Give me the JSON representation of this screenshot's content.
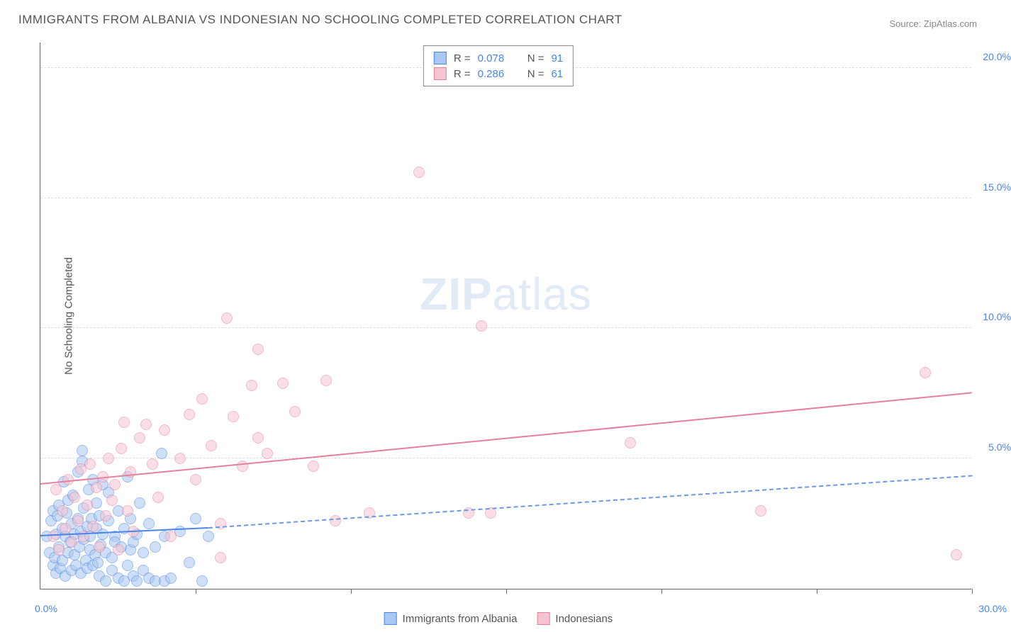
{
  "title": "IMMIGRANTS FROM ALBANIA VS INDONESIAN NO SCHOOLING COMPLETED CORRELATION CHART",
  "source": "Source: ZipAtlas.com",
  "y_axis_label": "No Schooling Completed",
  "watermark_zip": "ZIP",
  "watermark_atlas": "atlas",
  "chart": {
    "type": "scatter",
    "xlim": [
      0,
      30
    ],
    "ylim": [
      0,
      21
    ],
    "x_ticks": [
      0,
      5,
      10,
      15,
      20,
      25,
      30
    ],
    "y_ticks": [
      5,
      10,
      15,
      20
    ],
    "y_tick_labels": [
      "5.0%",
      "10.0%",
      "15.0%",
      "20.0%"
    ],
    "x_min_label": "0.0%",
    "x_max_label": "30.0%",
    "background_color": "#ffffff",
    "grid_color": "#dddddd",
    "axis_color": "#666666",
    "tick_label_color": "#4a86e8",
    "axis_label_color": "#555555",
    "title_color": "#555555",
    "title_fontsize": 17,
    "marker_radius": 8,
    "marker_opacity": 0.55,
    "series": [
      {
        "name": "Immigrants from Albania",
        "fill_color": "#a8c8f0",
        "stroke_color": "#4a86e8",
        "line_color": "#4a86e8",
        "line_dash_color": "#6a9ae8",
        "R": "0.078",
        "N": "91",
        "regression": {
          "x0": 0,
          "y0": 2.0,
          "x1": 5.4,
          "y1": 2.3,
          "dash_x1": 30,
          "dash_y1": 4.3
        },
        "points": [
          [
            0.2,
            2.0
          ],
          [
            0.3,
            1.4
          ],
          [
            0.35,
            2.6
          ],
          [
            0.4,
            0.9
          ],
          [
            0.4,
            3.0
          ],
          [
            0.45,
            1.2
          ],
          [
            0.5,
            2.1
          ],
          [
            0.5,
            0.6
          ],
          [
            0.55,
            2.8
          ],
          [
            0.6,
            1.6
          ],
          [
            0.6,
            3.2
          ],
          [
            0.65,
            0.8
          ],
          [
            0.7,
            2.3
          ],
          [
            0.7,
            1.1
          ],
          [
            0.75,
            4.1
          ],
          [
            0.8,
            2.0
          ],
          [
            0.8,
            0.5
          ],
          [
            0.85,
            2.9
          ],
          [
            0.9,
            1.4
          ],
          [
            0.9,
            3.4
          ],
          [
            0.95,
            1.8
          ],
          [
            1.0,
            2.5
          ],
          [
            1.0,
            0.7
          ],
          [
            1.05,
            3.6
          ],
          [
            1.1,
            1.3
          ],
          [
            1.1,
            2.1
          ],
          [
            1.15,
            0.9
          ],
          [
            1.2,
            2.7
          ],
          [
            1.2,
            4.5
          ],
          [
            1.25,
            1.6
          ],
          [
            1.3,
            2.2
          ],
          [
            1.3,
            0.6
          ],
          [
            1.35,
            4.9
          ],
          [
            1.4,
            1.9
          ],
          [
            1.4,
            3.1
          ],
          [
            1.45,
            1.1
          ],
          [
            1.5,
            2.4
          ],
          [
            1.5,
            0.8
          ],
          [
            1.55,
            3.8
          ],
          [
            1.6,
            1.5
          ],
          [
            1.6,
            2.0
          ],
          [
            1.65,
            2.7
          ],
          [
            1.7,
            0.9
          ],
          [
            1.7,
            4.2
          ],
          [
            1.75,
            1.3
          ],
          [
            1.8,
            2.3
          ],
          [
            1.8,
            3.3
          ],
          [
            1.85,
            1.0
          ],
          [
            1.9,
            2.8
          ],
          [
            1.9,
            0.5
          ],
          [
            1.95,
            1.7
          ],
          [
            2.0,
            2.1
          ],
          [
            2.0,
            4.0
          ],
          [
            2.1,
            1.4
          ],
          [
            2.1,
            0.3
          ],
          [
            2.2,
            2.6
          ],
          [
            2.2,
            3.7
          ],
          [
            2.3,
            1.2
          ],
          [
            2.3,
            0.7
          ],
          [
            2.4,
            2.0
          ],
          [
            2.4,
            1.8
          ],
          [
            2.5,
            3.0
          ],
          [
            2.5,
            0.4
          ],
          [
            2.6,
            1.6
          ],
          [
            2.7,
            0.3
          ],
          [
            2.7,
            2.3
          ],
          [
            2.8,
            0.9
          ],
          [
            2.8,
            4.3
          ],
          [
            2.9,
            1.5
          ],
          [
            2.9,
            2.7
          ],
          [
            3.0,
            0.5
          ],
          [
            3.0,
            1.8
          ],
          [
            3.1,
            0.3
          ],
          [
            3.1,
            2.1
          ],
          [
            3.2,
            3.3
          ],
          [
            3.3,
            0.7
          ],
          [
            3.3,
            1.4
          ],
          [
            3.5,
            0.4
          ],
          [
            3.5,
            2.5
          ],
          [
            3.7,
            0.3
          ],
          [
            3.7,
            1.6
          ],
          [
            4.0,
            0.3
          ],
          [
            4.0,
            2.0
          ],
          [
            4.2,
            0.4
          ],
          [
            4.5,
            2.2
          ],
          [
            4.8,
            1.0
          ],
          [
            5.0,
            2.7
          ],
          [
            5.2,
            0.3
          ],
          [
            5.4,
            2.0
          ],
          [
            3.9,
            5.2
          ],
          [
            1.35,
            5.3
          ]
        ]
      },
      {
        "name": "Indonesians",
        "fill_color": "#f5c4d0",
        "stroke_color": "#e8809c",
        "line_color": "#e8809c",
        "R": "0.286",
        "N": "61",
        "regression": {
          "x0": 0,
          "y0": 4.0,
          "x1": 30,
          "y1": 7.5
        },
        "points": [
          [
            0.4,
            2.0
          ],
          [
            0.5,
            3.8
          ],
          [
            0.6,
            1.5
          ],
          [
            0.7,
            3.0
          ],
          [
            0.8,
            2.3
          ],
          [
            0.9,
            4.2
          ],
          [
            1.0,
            1.8
          ],
          [
            1.1,
            3.5
          ],
          [
            1.2,
            2.6
          ],
          [
            1.3,
            4.6
          ],
          [
            1.4,
            2.0
          ],
          [
            1.5,
            3.2
          ],
          [
            1.6,
            4.8
          ],
          [
            1.7,
            2.4
          ],
          [
            1.8,
            3.9
          ],
          [
            1.9,
            1.6
          ],
          [
            2.0,
            4.3
          ],
          [
            2.1,
            2.8
          ],
          [
            2.2,
            5.0
          ],
          [
            2.3,
            3.4
          ],
          [
            2.4,
            4.0
          ],
          [
            2.5,
            1.5
          ],
          [
            2.6,
            5.4
          ],
          [
            2.8,
            3.0
          ],
          [
            2.9,
            4.5
          ],
          [
            3.0,
            2.2
          ],
          [
            3.2,
            5.8
          ],
          [
            3.4,
            6.3
          ],
          [
            3.6,
            4.8
          ],
          [
            3.8,
            3.5
          ],
          [
            4.0,
            6.1
          ],
          [
            4.2,
            2.0
          ],
          [
            4.5,
            5.0
          ],
          [
            4.8,
            6.7
          ],
          [
            5.0,
            4.2
          ],
          [
            5.2,
            7.3
          ],
          [
            5.5,
            5.5
          ],
          [
            5.8,
            2.5
          ],
          [
            6.0,
            10.4
          ],
          [
            6.2,
            6.6
          ],
          [
            6.5,
            4.7
          ],
          [
            6.8,
            7.8
          ],
          [
            7.0,
            9.2
          ],
          [
            7.3,
            5.2
          ],
          [
            7.8,
            7.9
          ],
          [
            8.2,
            6.8
          ],
          [
            8.8,
            4.7
          ],
          [
            9.2,
            8.0
          ],
          [
            9.5,
            2.6
          ],
          [
            10.6,
            2.9
          ],
          [
            12.2,
            16.0
          ],
          [
            13.8,
            2.9
          ],
          [
            14.2,
            10.1
          ],
          [
            14.5,
            2.9
          ],
          [
            19.0,
            5.6
          ],
          [
            23.2,
            3.0
          ],
          [
            28.5,
            8.3
          ],
          [
            29.5,
            1.3
          ],
          [
            5.8,
            1.2
          ],
          [
            2.7,
            6.4
          ],
          [
            7.0,
            5.8
          ]
        ]
      }
    ]
  },
  "legend": {
    "bottom": [
      {
        "label": "Immigrants from Albania",
        "fill": "#a8c8f0",
        "stroke": "#4a86e8"
      },
      {
        "label": "Indonesians",
        "fill": "#f5c4d0",
        "stroke": "#e8809c"
      }
    ]
  },
  "top_legend_labels": {
    "R": "R =",
    "N": "N ="
  }
}
